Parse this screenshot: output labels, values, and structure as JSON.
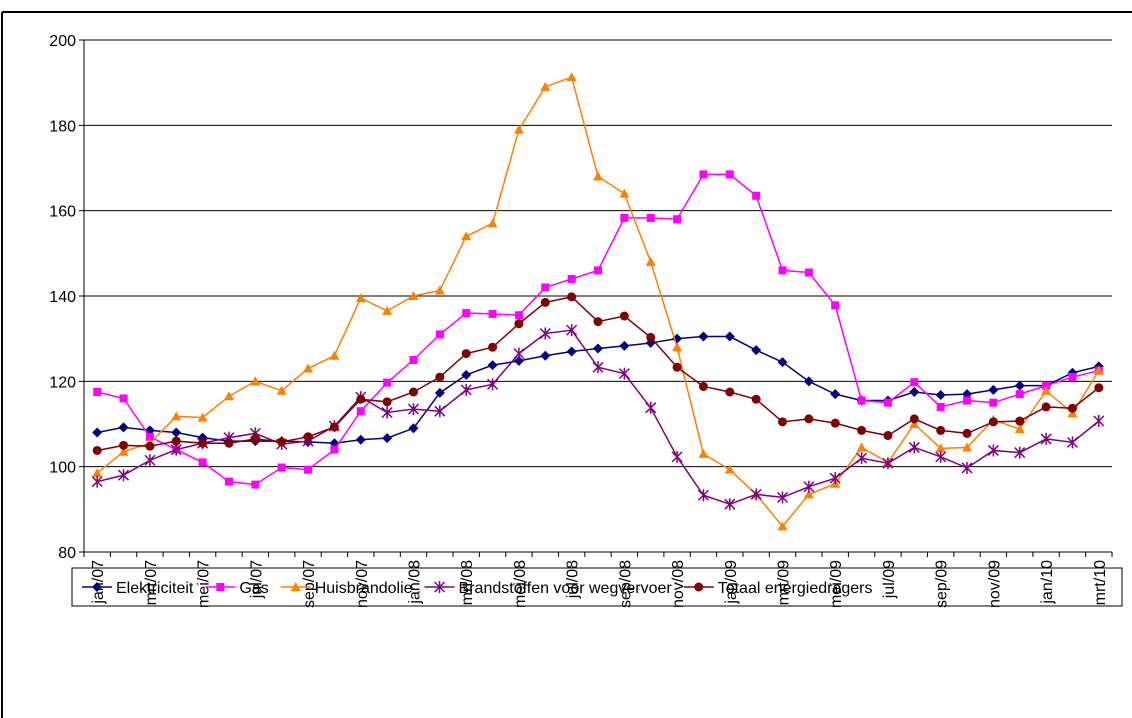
{
  "chart_data": {
    "type": "line",
    "categories": [
      "jan/07",
      null,
      "mrt/07",
      null,
      "mei/07",
      null,
      "jul/07",
      null,
      "sep/07",
      null,
      "nov/07",
      null,
      "jan/08",
      null,
      "mrt/08",
      null,
      "mei/08",
      null,
      "jul/08",
      null,
      "sep/08",
      null,
      "nov/08",
      null,
      "jan/09",
      null,
      "mrt/09",
      null,
      "mei/09",
      null,
      "jul/09",
      null,
      "sep/09",
      null,
      "nov/09",
      null,
      "jan/10",
      null,
      "mrt/10"
    ],
    "ylim": [
      80,
      200
    ],
    "yticks": [
      80,
      100,
      120,
      140,
      160,
      180,
      200
    ],
    "grid": true,
    "legend": "bottom",
    "series": [
      {
        "name": "Elektriciteit",
        "color": "#000080",
        "marker": "diamond",
        "values": [
          108,
          109.2,
          108.5,
          108,
          106.8,
          106,
          106,
          106,
          105.8,
          105.5,
          106.3,
          106.7,
          109,
          117.3,
          121.5,
          123.8,
          124.8,
          126,
          127,
          127.7,
          128.3,
          129,
          130,
          130.5,
          130.5,
          127.3,
          124.5,
          120,
          117,
          115.5,
          115.5,
          117.5,
          116.8,
          117,
          118,
          119,
          119,
          122,
          123.5
        ]
      },
      {
        "name": "Gas",
        "color": "#ff00ff",
        "marker": "square",
        "values": [
          117.5,
          116,
          107,
          104,
          101,
          96.5,
          95.8,
          99.8,
          99.3,
          104,
          113,
          119.7,
          125,
          131,
          136,
          135.8,
          135.5,
          142,
          144,
          146,
          158.3,
          158.3,
          158,
          168.5,
          168.5,
          163.5,
          146,
          145.5,
          137.8,
          115.5,
          115,
          119.8,
          114,
          115.5,
          115,
          117,
          119,
          121,
          122.5
        ]
      },
      {
        "name": "Huisbrandolie",
        "color": "#ff8000",
        "marker": "triangle",
        "values": [
          98.5,
          103.5,
          105.5,
          111.8,
          111.5,
          116.5,
          120,
          117.8,
          123,
          126,
          139.5,
          136.5,
          140,
          141.3,
          154,
          157,
          179,
          189,
          191.3,
          168,
          164,
          148,
          128,
          103,
          99.3,
          93.5,
          86,
          93.5,
          96,
          104.5,
          101,
          110,
          104.3,
          104.5,
          111,
          108.8,
          117.8,
          112.5,
          122.5
        ]
      },
      {
        "name": "Brandstoffen voor wegvervoer",
        "color": "#800080",
        "marker": "star",
        "values": [
          96.5,
          98,
          101.5,
          104,
          105.5,
          106.8,
          107.8,
          105.3,
          106,
          109.5,
          116.3,
          112.7,
          113.5,
          113,
          118,
          119.3,
          126.5,
          131.2,
          132,
          123.3,
          121.8,
          113.8,
          102.3,
          93.3,
          91.2,
          93.5,
          92.8,
          95.3,
          97.3,
          102,
          100.8,
          104.5,
          102.3,
          99.7,
          103.8,
          103.3,
          106.5,
          105.7,
          110.7
        ]
      },
      {
        "name": "Totaal energiedragers",
        "color": "#800000",
        "marker": "circle",
        "values": [
          103.8,
          105,
          104.8,
          106,
          105.5,
          105.5,
          106.5,
          105.8,
          107,
          109.3,
          115.8,
          115.2,
          117.5,
          121,
          126.5,
          128,
          133.5,
          138.5,
          139.8,
          134,
          135.3,
          130.3,
          123.3,
          118.8,
          117.5,
          115.8,
          110.5,
          111.2,
          110.2,
          108.5,
          107.3,
          111.2,
          108.5,
          107.8,
          110.5,
          110.7,
          114,
          113.7,
          118.5
        ]
      }
    ]
  }
}
